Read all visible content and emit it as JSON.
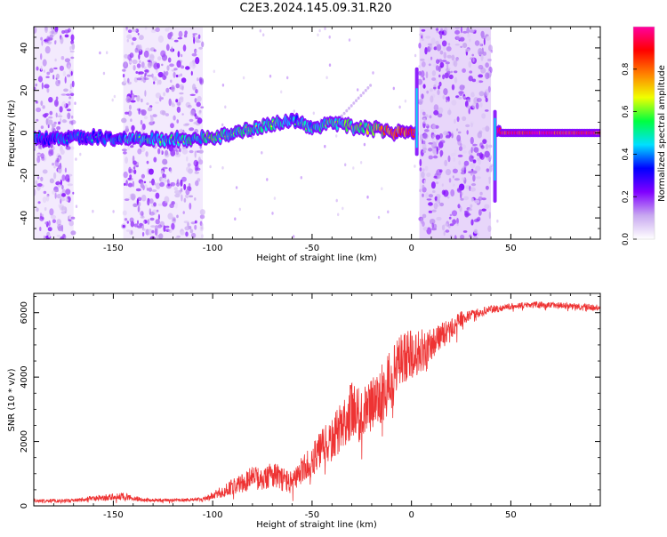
{
  "title": "C2E3.2024.145.09.31.R20",
  "colorbar": {
    "label": "Normalized spectral amplitude",
    "ticks": [
      "0.0",
      "0.2",
      "0.4",
      "0.6",
      "0.8"
    ],
    "tick_values": [
      0.0,
      0.2,
      0.4,
      0.6,
      0.8
    ],
    "range": [
      0,
      1
    ],
    "colormap": [
      "#ffffff",
      "#c8a8f0",
      "#8000ff",
      "#0000ff",
      "#00e0ff",
      "#00ff40",
      "#f0ff00",
      "#ff8000",
      "#ff0000",
      "#ff00a0"
    ]
  },
  "chart_data": [
    {
      "type": "heatmap",
      "name": "spectrogram",
      "xlabel": "Height of straight line (km)",
      "ylabel": "Frequency (Hz)",
      "xlim": [
        -190,
        95
      ],
      "ylim": [
        -50,
        50
      ],
      "xticks": [
        -150,
        -100,
        -50,
        0,
        50
      ],
      "xtick_labels": [
        "-150",
        "-100",
        "-50",
        "0",
        "50"
      ],
      "yticks": [
        -40,
        -20,
        0,
        20,
        40
      ],
      "ytick_labels": [
        "-40",
        "-20",
        "0",
        "20",
        "40"
      ],
      "ridge": {
        "x": [
          -190,
          -160,
          -140,
          -110,
          -100,
          -90,
          -80,
          -70,
          -60,
          -50,
          -40,
          -30,
          -20,
          -10,
          0,
          3,
          40,
          45,
          60,
          95
        ],
        "y": [
          -3,
          -2,
          -3,
          -3,
          -2,
          0,
          2,
          4,
          6,
          2,
          5,
          3,
          2,
          0,
          0,
          0,
          0,
          0,
          0,
          0
        ],
        "amplitude": [
          0.4,
          0.35,
          0.45,
          0.5,
          0.55,
          0.5,
          0.55,
          0.5,
          0.45,
          0.5,
          0.55,
          0.6,
          0.65,
          0.8,
          0.9,
          0.9,
          0.9,
          0.95,
          1.0,
          0.9
        ]
      },
      "noise_bands_x": [
        [
          -190,
          -170
        ],
        [
          -145,
          -105
        ],
        [
          4,
          40
        ]
      ]
    },
    {
      "type": "line",
      "name": "snr",
      "color": "#ee3333",
      "xlabel": "Height of straight line (km)",
      "ylabel": "SNR (10 * v/v)",
      "xlim": [
        -190,
        95
      ],
      "ylim": [
        0,
        6600
      ],
      "xticks": [
        -150,
        -100,
        -50,
        0,
        50
      ],
      "xtick_labels": [
        "-150",
        "-100",
        "-50",
        "0",
        "50"
      ],
      "yticks": [
        0,
        2000,
        4000,
        6000
      ],
      "ytick_labels": [
        "0",
        "2000",
        "4000",
        "6000"
      ],
      "x": [
        -190,
        -170,
        -155,
        -145,
        -135,
        -120,
        -105,
        -100,
        -95,
        -90,
        -85,
        -80,
        -75,
        -70,
        -65,
        -60,
        -55,
        -50,
        -45,
        -40,
        -35,
        -30,
        -25,
        -20,
        -15,
        -10,
        -5,
        0,
        5,
        10,
        15,
        20,
        25,
        30,
        40,
        50,
        60,
        70,
        80,
        95
      ],
      "y": [
        150,
        170,
        250,
        300,
        180,
        180,
        200,
        300,
        450,
        600,
        700,
        900,
        800,
        1000,
        850,
        700,
        1100,
        1400,
        1800,
        2000,
        2500,
        3000,
        2700,
        3200,
        3500,
        3900,
        4600,
        4700,
        4800,
        5000,
        5300,
        5500,
        5800,
        5950,
        6100,
        6200,
        6250,
        6250,
        6200,
        6150
      ],
      "noise_amp": [
        60,
        60,
        100,
        120,
        60,
        50,
        60,
        120,
        200,
        250,
        300,
        350,
        350,
        400,
        400,
        350,
        450,
        500,
        600,
        700,
        800,
        900,
        900,
        900,
        900,
        1000,
        900,
        800,
        700,
        500,
        400,
        300,
        250,
        150,
        120,
        100,
        100,
        100,
        100,
        100
      ]
    }
  ]
}
